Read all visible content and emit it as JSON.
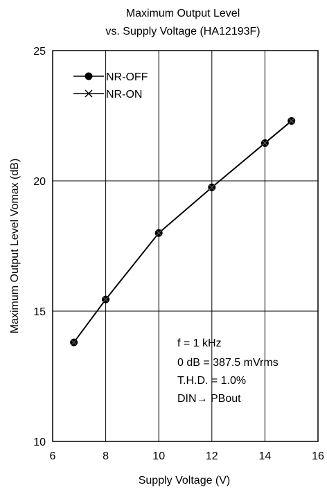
{
  "chart_data": {
    "type": "line",
    "title": "Maximum Output Level",
    "subtitle": "vs. Supply Voltage  (HA12193F)",
    "xlabel": "Supply Voltage  (V)",
    "ylabel": "Maximum Output Level  Vomax  (dB)",
    "xlim": [
      6,
      16
    ],
    "ylim": [
      10,
      25
    ],
    "xticks": [
      "6",
      "8",
      "10",
      "12",
      "14",
      "16"
    ],
    "yticks": [
      "10",
      "15",
      "20",
      "25"
    ],
    "grid": true,
    "legend_position": "top-left",
    "series": [
      {
        "name": "NR-OFF",
        "marker": "filled-circle",
        "x": [
          6.8,
          8,
          10,
          12,
          14,
          15
        ],
        "y": [
          13.8,
          15.45,
          18.0,
          19.75,
          21.45,
          22.3
        ]
      },
      {
        "name": "NR-ON",
        "marker": "x",
        "x": [
          6.8,
          8,
          10,
          12,
          14,
          15
        ],
        "y": [
          13.8,
          15.45,
          18.0,
          19.75,
          21.45,
          22.3
        ]
      }
    ],
    "annotations": [
      "f = 1 kHz",
      "0 dB = 387.5 mVrms",
      "T.H.D. = 1.0%",
      "DIN→ PBout"
    ]
  }
}
